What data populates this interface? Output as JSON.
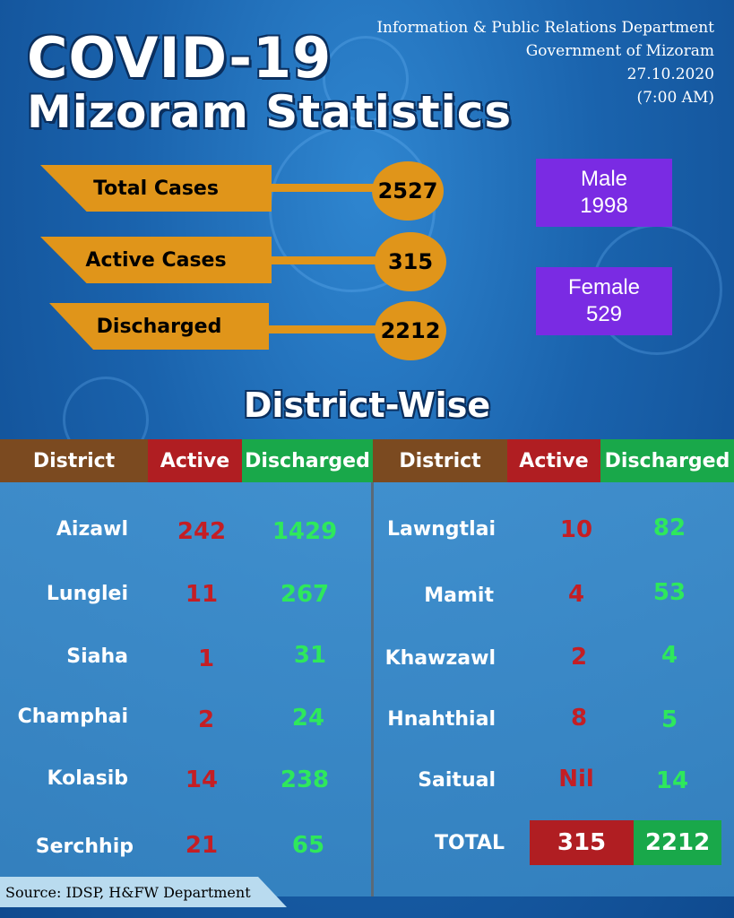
{
  "header": {
    "title_line1": "COVID-19",
    "title_line2": "Mizoram Statistics",
    "dept_line1": "Information & Public Relations Department",
    "dept_line2": "Government of Mizoram",
    "date": "27.10.2020",
    "time": "(7:00 AM)"
  },
  "summary": {
    "total_label": "Total Cases",
    "total_value": "2527",
    "active_label": "Active Cases",
    "active_value": "315",
    "discharged_label": "Discharged",
    "discharged_value": "2212"
  },
  "gender": {
    "male_label": "Male",
    "male_value": "1998",
    "female_label": "Female",
    "female_value": "529"
  },
  "district_title": "District-Wise",
  "columns": {
    "district": "District",
    "active": "Active",
    "discharged": "Discharged"
  },
  "left_rows": [
    {
      "district": "Aizawl",
      "active": "242",
      "discharged": "1429"
    },
    {
      "district": "Lunglei",
      "active": "11",
      "discharged": "267"
    },
    {
      "district": "Siaha",
      "active": "1",
      "discharged": "31"
    },
    {
      "district": "Champhai",
      "active": "2",
      "discharged": "24"
    },
    {
      "district": "Kolasib",
      "active": "14",
      "discharged": "238"
    },
    {
      "district": "Serchhip",
      "active": "21",
      "discharged": "65"
    }
  ],
  "right_rows": [
    {
      "district": "Lawngtlai",
      "active": "10",
      "discharged": "82"
    },
    {
      "district": "Mamit",
      "active": "4",
      "discharged": "53"
    },
    {
      "district": "Khawzawl",
      "active": "2",
      "discharged": "4"
    },
    {
      "district": "Hnahthial",
      "active": "8",
      "discharged": "5"
    },
    {
      "district": "Saitual",
      "active": "Nil",
      "discharged": "14"
    }
  ],
  "total": {
    "label": "TOTAL",
    "active": "315",
    "discharged": "2212"
  },
  "source": "Source: IDSP, H&FW Department",
  "colors": {
    "orange": "#e0951a",
    "purple": "#7a2be3",
    "red": "#b01e22",
    "green": "#19a84a",
    "brown": "#7b4a20"
  }
}
